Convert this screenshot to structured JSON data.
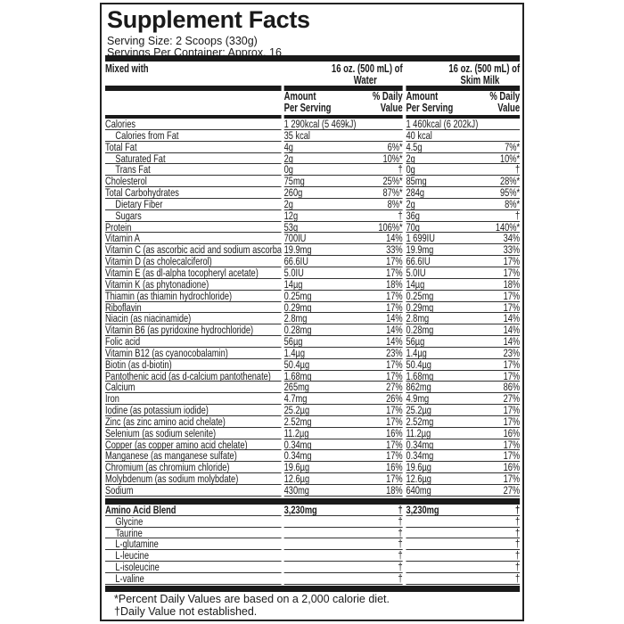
{
  "title": "Supplement Facts",
  "serving_size": "Serving Size: 2 Scoops (330g)",
  "servings_per_container": "Servings Per Container: Approx. 16",
  "header": {
    "mixed_with": "Mixed with",
    "water_line1": "16 oz. (500 mL) of",
    "water_line2": "Water",
    "milk_line1": "16 oz. (500 mL) of",
    "milk_line2": "Skim Milk",
    "amount_line1": "Amount",
    "amount_line2": "Per Serving",
    "dv_line1": "% Daily",
    "dv_line2": "Value"
  },
  "nutrients": [
    {
      "name": "Calories",
      "w": "1 290kcal (5 469kJ)",
      "wd": "",
      "m": "1 460kcal (6 202kJ)",
      "md": ""
    },
    {
      "name": "Calories from Fat",
      "indent": true,
      "w": "35 kcal",
      "wd": "",
      "m": "40 kcal",
      "md": ""
    },
    {
      "name": "Total Fat",
      "w": "4g",
      "wd": "6%*",
      "m": "4.5g",
      "md": "7%*"
    },
    {
      "name": "Saturated Fat",
      "indent": true,
      "w": "2g",
      "wd": "10%*",
      "m": "2g",
      "md": "10%*"
    },
    {
      "name": "Trans Fat",
      "indent": true,
      "w": "0g",
      "wd": "†",
      "m": "0g",
      "md": "†"
    },
    {
      "name": "Cholesterol",
      "w": "75mg",
      "wd": "25%*",
      "m": "85mg",
      "md": "28%*"
    },
    {
      "name": "Total Carbohydrates",
      "w": "260g",
      "wd": "87%*",
      "m": "284g",
      "md": "95%*"
    },
    {
      "name": "Dietary Fiber",
      "indent": true,
      "w": "2g",
      "wd": "8%*",
      "m": "2g",
      "md": "8%*"
    },
    {
      "name": "Sugars",
      "indent": true,
      "w": "12g",
      "wd": "†",
      "m": "36g",
      "md": "†"
    },
    {
      "name": "Protein",
      "w": "53g",
      "wd": "106%*",
      "m": "70g",
      "md": "140%*"
    },
    {
      "name": "Vitamin A",
      "w": "700IU",
      "wd": "14%",
      "m": "1 699IU",
      "md": "34%"
    },
    {
      "name": "Vitamin C (as ascorbic acid and sodium ascorbate)",
      "w": "19.9mg",
      "wd": "33%",
      "m": "19.9mg",
      "md": "33%"
    },
    {
      "name": "Vitamin D (as cholecalciferol)",
      "w": "66.6IU",
      "wd": "17%",
      "m": "66.6IU",
      "md": "17%"
    },
    {
      "name": "Vitamin E (as dl-alpha tocopheryl acetate)",
      "w": "5.0IU",
      "wd": "17%",
      "m": "5.0IU",
      "md": "17%"
    },
    {
      "name": "Vitamin K (as phytonadione)",
      "w": "14µg",
      "wd": "18%",
      "m": "14µg",
      "md": "18%"
    },
    {
      "name": "Thiamin (as thiamin hydrochloride)",
      "w": "0.25mg",
      "wd": "17%",
      "m": "0.25mg",
      "md": "17%"
    },
    {
      "name": "Riboflavin",
      "w": "0.29mg",
      "wd": "17%",
      "m": "0.29mg",
      "md": "17%"
    },
    {
      "name": "Niacin (as niacinamide)",
      "w": "2.8mg",
      "wd": "14%",
      "m": "2.8mg",
      "md": "14%"
    },
    {
      "name": "Vitamin B6 (as pyridoxine hydrochloride)",
      "w": "0.28mg",
      "wd": "14%",
      "m": "0.28mg",
      "md": "14%"
    },
    {
      "name": "Folic acid",
      "w": "56µg",
      "wd": "14%",
      "m": "56µg",
      "md": "14%"
    },
    {
      "name": "Vitamin B12 (as cyanocobalamin)",
      "w": "1.4µg",
      "wd": "23%",
      "m": "1.4µg",
      "md": "23%"
    },
    {
      "name": "Biotin (as d-biotin)",
      "w": "50.4µg",
      "wd": "17%",
      "m": "50.4µg",
      "md": "17%"
    },
    {
      "name": "Pantothenic acid (as d-calcium pantothenate)",
      "w": "1.68mg",
      "wd": "17%",
      "m": "1.68mg",
      "md": "17%"
    },
    {
      "name": "Calcium",
      "w": "265mg",
      "wd": "27%",
      "m": "862mg",
      "md": "86%"
    },
    {
      "name": "Iron",
      "w": "4.7mg",
      "wd": "26%",
      "m": "4.9mg",
      "md": "27%"
    },
    {
      "name": "Iodine (as potassium iodide)",
      "w": "25.2µg",
      "wd": "17%",
      "m": "25.2µg",
      "md": "17%"
    },
    {
      "name": "Zinc (as zinc amino acid chelate)",
      "w": "2.52mg",
      "wd": "17%",
      "m": "2.52mg",
      "md": "17%"
    },
    {
      "name": "Selenium (as sodium selenite)",
      "w": "11.2µg",
      "wd": "16%",
      "m": "11.2µg",
      "md": "16%"
    },
    {
      "name": "Copper (as copper amino acid chelate)",
      "w": "0.34mg",
      "wd": "17%",
      "m": "0.34mg",
      "md": "17%"
    },
    {
      "name": "Manganese (as manganese sulfate)",
      "w": "0.34mg",
      "wd": "17%",
      "m": "0.34mg",
      "md": "17%"
    },
    {
      "name": "Chromium (as chromium chloride)",
      "w": "19.6µg",
      "wd": "16%",
      "m": "19.6µg",
      "md": "16%"
    },
    {
      "name": "Molybdenum (as sodium molybdate)",
      "w": "12.6µg",
      "wd": "17%",
      "m": "12.6µg",
      "md": "17%"
    },
    {
      "name": "Sodium",
      "w": "430mg",
      "wd": "18%",
      "m": "640mg",
      "md": "27%"
    }
  ],
  "amino": [
    {
      "name": "Amino Acid Blend",
      "bold": true,
      "w": "3,230mg",
      "wd": "†",
      "m": "3,230mg",
      "md": "†"
    },
    {
      "name": "Glycine",
      "indent": true,
      "w": "",
      "wd": "†",
      "m": "",
      "md": "†"
    },
    {
      "name": "Taurine",
      "indent": true,
      "w": "",
      "wd": "†",
      "m": "",
      "md": "†"
    },
    {
      "name": "L-glutamine",
      "indent": true,
      "w": "",
      "wd": "†",
      "m": "",
      "md": "†"
    },
    {
      "name": "L-leucine",
      "indent": true,
      "w": "",
      "wd": "†",
      "m": "",
      "md": "†"
    },
    {
      "name": "L-isoleucine",
      "indent": true,
      "w": "",
      "wd": "†",
      "m": "",
      "md": "†"
    },
    {
      "name": "L-valine",
      "indent": true,
      "w": "",
      "wd": "†",
      "m": "",
      "md": "†"
    }
  ],
  "footnote_1": "*Percent Daily Values are based on a 2,000 calorie diet.",
  "footnote_2": "†Daily Value not established."
}
